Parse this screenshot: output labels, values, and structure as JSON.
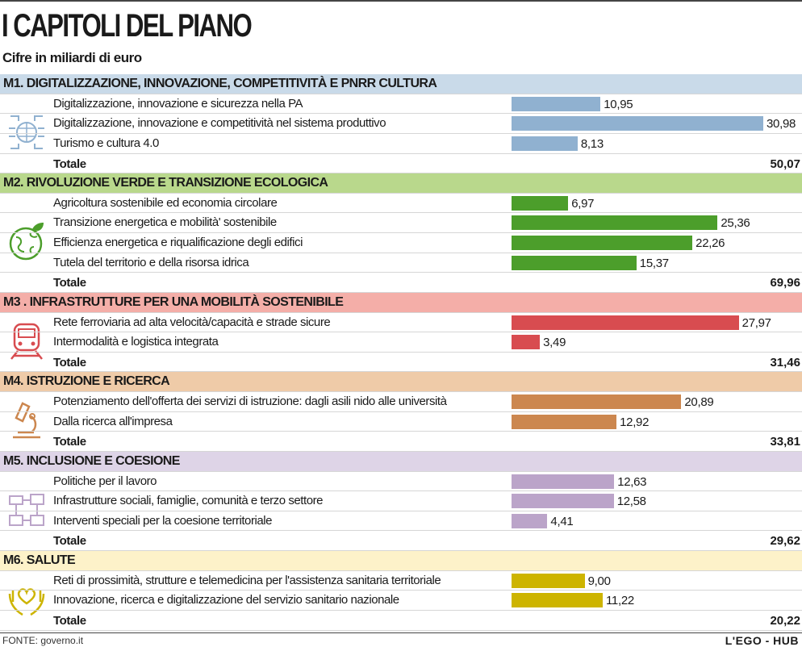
{
  "title": "I CAPITOLI DEL PIANO",
  "subtitle": "Cifre in miliardi di euro",
  "footer": {
    "source": "FONTE: governo.it",
    "brand": "L'EGO - HUB"
  },
  "total_label": "Totale",
  "chart_data": {
    "type": "bar",
    "orientation": "horizontal",
    "unit": "miliardi di euro",
    "sections": [
      {
        "name": "M1. DIGITALIZZAZIONE, INNOVAZIONE, COMPETITIVITÀ E PNRR CULTURA",
        "header_color": "#c9dae9",
        "bar_color": "#90b1d0",
        "icon": "digital-globe-icon",
        "items": [
          {
            "label": "Digitalizzazione, innovazione e sicurezza nella PA",
            "value": 10.95,
            "display": "10,95"
          },
          {
            "label": "Digitalizzazione, innovazione e competitività nel sistema produttivo",
            "value": 30.98,
            "display": "30,98"
          },
          {
            "label": "Turismo e cultura 4.0",
            "value": 8.13,
            "display": "8,13"
          }
        ],
        "total": "50,07"
      },
      {
        "name": "M2. RIVOLUZIONE VERDE E TRANSIZIONE ECOLOGICA",
        "header_color": "#b9d88c",
        "bar_color": "#4c9e2b",
        "icon": "green-earth-icon",
        "items": [
          {
            "label": "Agricoltura sostenibile ed economia circolare",
            "value": 6.97,
            "display": "6,97"
          },
          {
            "label": "Transizione energetica e mobilità' sostenibile",
            "value": 25.36,
            "display": "25,36"
          },
          {
            "label": "Efficienza energetica e riqualificazione degli edifici",
            "value": 22.26,
            "display": "22,26"
          },
          {
            "label": "Tutela del territorio e della risorsa idrica",
            "value": 15.37,
            "display": "15,37"
          }
        ],
        "total": "69,96"
      },
      {
        "name": "M3 . INFRASTRUTTURE PER UNA MOBILITÀ SOSTENIBILE",
        "header_color": "#f4aea8",
        "bar_color": "#d84c50",
        "icon": "train-icon",
        "items": [
          {
            "label": "Rete ferroviaria ad alta velocità/capacità e strade sicure",
            "value": 27.97,
            "display": "27,97"
          },
          {
            "label": "Intermodalità e logistica integrata",
            "value": 3.49,
            "display": "3,49"
          }
        ],
        "total": "31,46"
      },
      {
        "name": "M4. ISTRUZIONE E RICERCA",
        "header_color": "#efcba8",
        "bar_color": "#cc874f",
        "icon": "microscope-icon",
        "items": [
          {
            "label": "Potenziamento dell'offerta dei servizi di istruzione: dagli asili nido alle università",
            "value": 20.89,
            "display": "20,89"
          },
          {
            "label": "Dalla ricerca all'impresa",
            "value": 12.92,
            "display": "12,92"
          }
        ],
        "total": "33,81"
      },
      {
        "name": "M5. INCLUSIONE E COESIONE",
        "header_color": "#ded4e7",
        "bar_color": "#bba4c9",
        "icon": "joined-hands-icon",
        "items": [
          {
            "label": "Politiche per il lavoro",
            "value": 12.63,
            "display": "12,63"
          },
          {
            "label": "Infrastrutture sociali, famiglie, comunità e terzo settore",
            "value": 12.58,
            "display": "12,58"
          },
          {
            "label": "Interventi speciali per la coesione territoriale",
            "value": 4.41,
            "display": "4,41"
          }
        ],
        "total": "29,62"
      },
      {
        "name": "M6. SALUTE",
        "header_color": "#fdf2c9",
        "bar_color": "#cdb400",
        "icon": "hands-heart-icon",
        "items": [
          {
            "label": "Reti di prossimità, strutture e telemedicina per l'assistenza sanitaria territoriale",
            "value": 9.0,
            "display": "9,00"
          },
          {
            "label": "Innovazione, ricerca e digitalizzazione del servizio sanitario nazionale",
            "value": 11.22,
            "display": "11,22"
          }
        ],
        "total": "20,22"
      }
    ]
  }
}
